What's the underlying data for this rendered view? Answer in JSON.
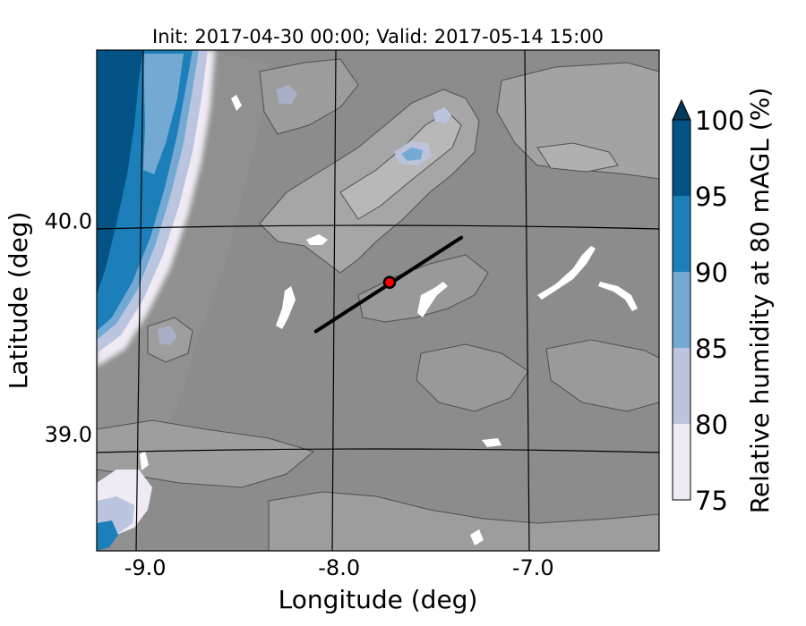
{
  "chart_data": {
    "type": "heatmap",
    "title": "Init: 2017-04-30 00:00; Valid: 2017-05-14 15:00",
    "xlabel": "Longitude (deg)",
    "ylabel": "Latitude (deg)",
    "xlim": [
      -9.25,
      -6.35
    ],
    "ylim": [
      38.45,
      40.8
    ],
    "x_ticks": [
      -9.0,
      -8.0,
      -7.0
    ],
    "x_tick_labels": [
      "-9.0",
      "-8.0",
      "-7.0"
    ],
    "y_ticks": [
      39.0,
      40.0
    ],
    "y_tick_labels": [
      "39.0",
      "40.0"
    ],
    "grid": true,
    "colorbar": {
      "label": "Relative humidity at 80 mAGL (%)",
      "levels": [
        75,
        80,
        85,
        90,
        95,
        100
      ],
      "tick_labels": [
        "75",
        "80",
        "85",
        "90",
        "95",
        "100"
      ],
      "colors": [
        "#efeaf4",
        "#bcc5e0",
        "#73a9d2",
        "#1c7fb9",
        "#045387"
      ],
      "extend": "max",
      "extend_color": "#023858",
      "placement": "right"
    },
    "transect": {
      "start": {
        "lon": -8.12,
        "lat": 39.48
      },
      "end": {
        "lon": -7.37,
        "lat": 39.92
      },
      "color": "#000000"
    },
    "marker": {
      "lon": -7.74,
      "lat": 39.71,
      "color": "#ff0000"
    },
    "colors": {
      "terrain_background": "#8c8c8c",
      "terrain_mid": "#a0a0a0",
      "terrain_high": "#b8b8b8",
      "masked": "#ffffff",
      "contour": "#505050"
    }
  }
}
